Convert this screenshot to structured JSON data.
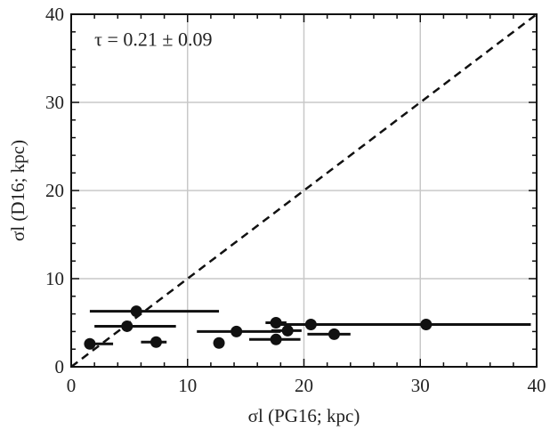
{
  "chart_data": {
    "type": "scatter",
    "title": "",
    "xlabel": "σl (PG16; kpc)",
    "ylabel": "σl (D16; kpc)",
    "xlim": [
      0,
      40
    ],
    "ylim": [
      0,
      40
    ],
    "xticks": [
      "0",
      "10",
      "20",
      "30",
      "40"
    ],
    "yticks": [
      "0",
      "10",
      "20",
      "30",
      "40"
    ],
    "grid": true,
    "annotation": "τ = 0.21 ± 0.09",
    "reference_line": {
      "style": "dashed",
      "from": [
        0,
        0
      ],
      "to": [
        40,
        40
      ]
    },
    "points": [
      {
        "x": 1.6,
        "y": 2.6,
        "xerr_low": 1.6,
        "xerr_high": 3.6
      },
      {
        "x": 4.8,
        "y": 4.6,
        "xerr_low": 2.0,
        "xerr_high": 9.0
      },
      {
        "x": 5.6,
        "y": 6.3,
        "xerr_low": 1.6,
        "xerr_high": 12.7
      },
      {
        "x": 7.3,
        "y": 2.8,
        "xerr_low": 6.0,
        "xerr_high": 8.2
      },
      {
        "x": 12.7,
        "y": 2.7,
        "xerr_low": null,
        "xerr_high": null
      },
      {
        "x": 14.2,
        "y": 4.0,
        "xerr_low": 10.8,
        "xerr_high": 18.0
      },
      {
        "x": 17.6,
        "y": 5.0,
        "xerr_low": 16.7,
        "xerr_high": 18.5
      },
      {
        "x": 17.6,
        "y": 3.1,
        "xerr_low": 15.3,
        "xerr_high": 19.7
      },
      {
        "x": 18.6,
        "y": 4.1,
        "xerr_low": 17.2,
        "xerr_high": 19.8
      },
      {
        "x": 20.6,
        "y": 4.8,
        "xerr_low": 18.0,
        "xerr_high": 24.0
      },
      {
        "x": 22.6,
        "y": 3.7,
        "xerr_low": 20.3,
        "xerr_high": 24.0
      },
      {
        "x": 30.5,
        "y": 4.8,
        "xerr_low": 19.5,
        "xerr_high": 39.5
      }
    ]
  }
}
